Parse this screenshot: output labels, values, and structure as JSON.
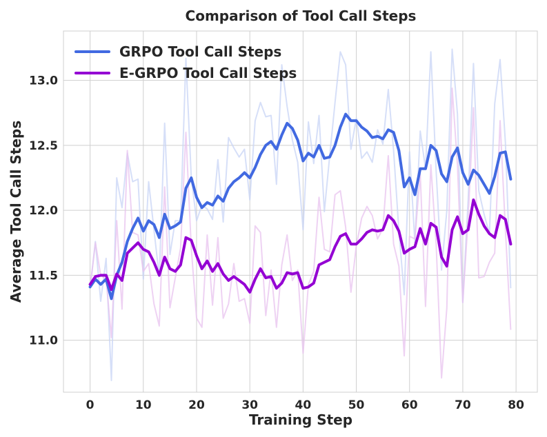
{
  "chart_data": {
    "type": "line",
    "title": "Comparison of Tool Call Steps",
    "xlabel": "Training Step",
    "ylabel": "Average Tool Call Steps",
    "xlim": [
      -5,
      84
    ],
    "ylim": [
      10.6,
      13.38
    ],
    "xticks": [
      0,
      10,
      20,
      30,
      40,
      50,
      60,
      70,
      80
    ],
    "yticks": [
      11.0,
      11.5,
      12.0,
      12.5,
      13.0
    ],
    "xtick_labels": [
      "0",
      "10",
      "20",
      "30",
      "40",
      "50",
      "60",
      "70",
      "80"
    ],
    "ytick_labels": [
      "11.0",
      "11.5",
      "12.0",
      "12.5",
      "13.0"
    ],
    "grid": true,
    "legend_position": "top-left",
    "x": [
      0,
      1,
      2,
      3,
      4,
      5,
      6,
      7,
      8,
      9,
      10,
      11,
      12,
      13,
      14,
      15,
      16,
      17,
      18,
      19,
      20,
      21,
      22,
      23,
      24,
      25,
      26,
      27,
      28,
      29,
      30,
      31,
      32,
      33,
      34,
      35,
      36,
      37,
      38,
      39,
      40,
      41,
      42,
      43,
      44,
      45,
      46,
      47,
      48,
      49,
      50,
      51,
      52,
      53,
      54,
      55,
      56,
      57,
      58,
      59,
      60,
      61,
      62,
      63,
      64,
      65,
      66,
      67,
      68,
      69,
      70,
      71,
      72,
      73,
      74,
      75,
      76,
      77,
      78,
      79
    ],
    "series": [
      {
        "name": "GRPO Tool Call Steps",
        "color": "#4169e1",
        "raw_color": "#c8d4f5",
        "smoothed": [
          11.41,
          11.47,
          11.43,
          11.47,
          11.32,
          11.5,
          11.6,
          11.76,
          11.86,
          11.94,
          11.84,
          11.92,
          11.89,
          11.79,
          11.97,
          11.86,
          11.88,
          11.91,
          12.17,
          12.25,
          12.1,
          12.02,
          12.06,
          12.04,
          12.11,
          12.07,
          12.17,
          12.22,
          12.25,
          12.29,
          12.25,
          12.33,
          12.43,
          12.5,
          12.53,
          12.47,
          12.58,
          12.67,
          12.63,
          12.54,
          12.38,
          12.44,
          12.41,
          12.5,
          12.4,
          12.41,
          12.5,
          12.64,
          12.74,
          12.69,
          12.69,
          12.64,
          12.61,
          12.56,
          12.57,
          12.55,
          12.62,
          12.6,
          12.46,
          12.18,
          12.25,
          12.12,
          12.32,
          12.32,
          12.5,
          12.46,
          12.28,
          12.22,
          12.41,
          12.48,
          12.29,
          12.2,
          12.31,
          12.27,
          12.2,
          12.13,
          12.26,
          12.44,
          12.45,
          12.24
        ],
        "raw": [
          11.4,
          11.76,
          11.3,
          11.63,
          10.69,
          12.25,
          12.02,
          12.44,
          12.22,
          12.24,
          11.47,
          12.22,
          11.85,
          11.49,
          12.67,
          11.66,
          11.92,
          11.92,
          13.17,
          12.25,
          11.92,
          12.04,
          12.01,
          11.93,
          12.39,
          11.91,
          12.56,
          12.48,
          12.41,
          12.47,
          12.08,
          12.69,
          12.83,
          12.72,
          12.73,
          12.2,
          13.12,
          12.8,
          12.54,
          12.37,
          11.85,
          12.68,
          12.36,
          12.73,
          11.99,
          12.42,
          12.83,
          13.22,
          13.12,
          12.47,
          12.71,
          12.4,
          12.45,
          12.37,
          12.62,
          12.51,
          12.93,
          12.46,
          11.84,
          11.35,
          12.45,
          11.75,
          12.61,
          12.32,
          13.22,
          12.3,
          11.54,
          12.0,
          13.24,
          12.74,
          11.29,
          12.08,
          13.13,
          12.15,
          11.97,
          11.82,
          12.82,
          13.16,
          12.52,
          11.4
        ]
      },
      {
        "name": "E-GRPO Tool Call Steps",
        "color": "#9400d3",
        "raw_color": "#e8c3ef",
        "smoothed": [
          11.43,
          11.49,
          11.5,
          11.5,
          11.39,
          11.51,
          11.46,
          11.67,
          11.71,
          11.75,
          11.7,
          11.68,
          11.6,
          11.5,
          11.64,
          11.55,
          11.53,
          11.58,
          11.79,
          11.77,
          11.65,
          11.55,
          11.61,
          11.53,
          11.59,
          11.51,
          11.46,
          11.49,
          11.46,
          11.43,
          11.37,
          11.47,
          11.55,
          11.48,
          11.49,
          11.4,
          11.44,
          11.52,
          11.51,
          11.52,
          11.4,
          11.41,
          11.44,
          11.58,
          11.6,
          11.62,
          11.72,
          11.8,
          11.82,
          11.74,
          11.74,
          11.78,
          11.83,
          11.85,
          11.84,
          11.85,
          11.96,
          11.92,
          11.84,
          11.67,
          11.7,
          11.72,
          11.86,
          11.74,
          11.9,
          11.87,
          11.64,
          11.57,
          11.85,
          11.95,
          11.82,
          11.85,
          12.08,
          11.97,
          11.88,
          11.82,
          11.79,
          11.96,
          11.93,
          11.74
        ],
        "raw": [
          11.4,
          11.75,
          11.5,
          11.47,
          11.02,
          11.92,
          11.24,
          12.46,
          11.83,
          11.81,
          11.53,
          11.59,
          11.28,
          11.11,
          12.18,
          11.25,
          11.48,
          11.71,
          12.6,
          11.71,
          11.17,
          11.1,
          11.81,
          11.27,
          11.79,
          11.17,
          11.28,
          11.59,
          11.3,
          11.32,
          11.13,
          11.88,
          11.83,
          11.19,
          11.54,
          11.1,
          11.58,
          11.81,
          11.46,
          11.54,
          10.9,
          11.43,
          11.53,
          12.1,
          11.7,
          11.68,
          12.12,
          12.15,
          11.87,
          11.37,
          11.73,
          11.94,
          12.03,
          11.96,
          11.78,
          11.86,
          12.42,
          11.74,
          11.57,
          10.88,
          11.8,
          11.78,
          12.28,
          11.26,
          12.35,
          11.74,
          10.71,
          11.25,
          12.94,
          12.35,
          11.29,
          11.94,
          12.79,
          11.48,
          11.49,
          11.6,
          11.67,
          12.69,
          11.85,
          11.08
        ]
      }
    ]
  }
}
